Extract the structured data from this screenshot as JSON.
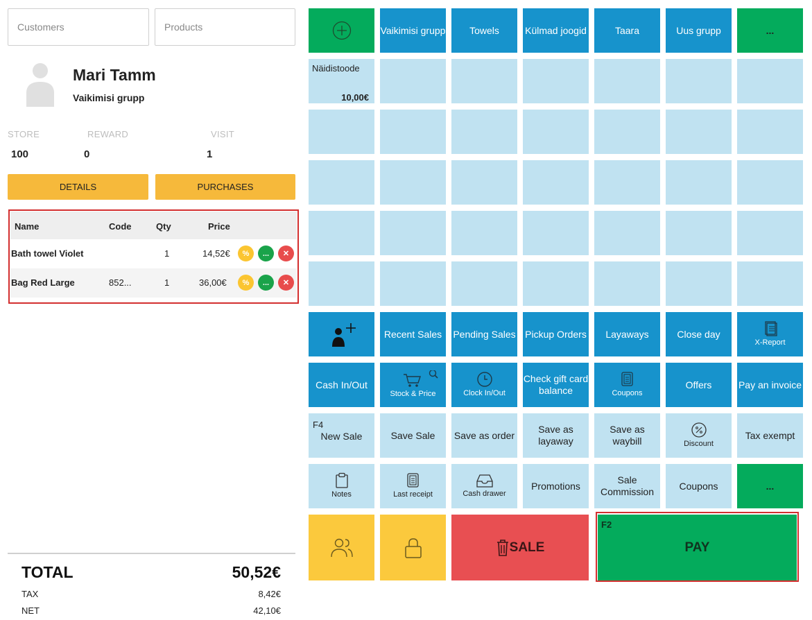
{
  "search": {
    "customers_placeholder": "Customers",
    "products_placeholder": "Products"
  },
  "customer": {
    "name": "Mari Tamm",
    "group": "Vaikimisi grupp",
    "stats": [
      {
        "label": "STORE",
        "value": "100"
      },
      {
        "label": "REWARD",
        "value": "0"
      },
      {
        "label": "VISIT",
        "value": "1"
      }
    ],
    "details_label": "DETAILS",
    "purchases_label": "PURCHASES"
  },
  "cart": {
    "headers": {
      "name": "Name",
      "code": "Code",
      "qty": "Qty",
      "price": "Price"
    },
    "rows": [
      {
        "name": "Bath towel Violet",
        "code": "",
        "qty": "1",
        "price": "14,52€"
      },
      {
        "name": "Bag Red Large",
        "code": "852...",
        "qty": "1",
        "price": "36,00€"
      }
    ],
    "discount_glyph": "%",
    "more_glyph": "...",
    "remove_glyph": "✕"
  },
  "totals": {
    "total_label": "TOTAL",
    "total_value": "50,52€",
    "tax_label": "TAX",
    "tax_value": "8,42€",
    "net_label": "NET",
    "net_value": "42,10€"
  },
  "groups": {
    "add_glyph": "+",
    "tabs": [
      "Vaikimisi grupp",
      "Towels",
      "Külmad joogid",
      "Taara",
      "Uus grupp"
    ],
    "more_label": "..."
  },
  "product": {
    "name": "Näidistoode",
    "price": "10,00€"
  },
  "functions": {
    "recent_sales": "Recent Sales",
    "pending_sales": "Pending Sales",
    "pickup_orders": "Pickup Orders",
    "layaways": "Layaways",
    "close_day": "Close day",
    "x_report": "X-Report",
    "cash_in_out": "Cash In/Out",
    "stock_price": "Stock & Price",
    "clock_in_out": "Clock In/Out",
    "check_gift_card": "Check gift card balance",
    "coupons_small": "Coupons",
    "offers": "Offers",
    "pay_invoice": "Pay an invoice",
    "new_sale_key": "F4",
    "new_sale": "New Sale",
    "save_sale": "Save Sale",
    "save_order": "Save as order",
    "save_layaway": "Save as layaway",
    "save_waybill": "Save as waybill",
    "discount": "Discount",
    "tax_exempt": "Tax exempt",
    "notes": "Notes",
    "last_receipt": "Last receipt",
    "cash_drawer": "Cash drawer",
    "promotions": "Promotions",
    "sale_commission": "Sale Commission",
    "coupons": "Coupons",
    "more": "..."
  },
  "bottom": {
    "sale_label": "SALE",
    "pay_key": "F2",
    "pay_label": "PAY"
  },
  "colors": {
    "tile_dark": "#1793cc",
    "tile_light": "#c0e2f1",
    "green": "#04ab5c",
    "yellow": "#fbc531",
    "red": "#e84c4c",
    "highlight": "#d32f2f"
  }
}
